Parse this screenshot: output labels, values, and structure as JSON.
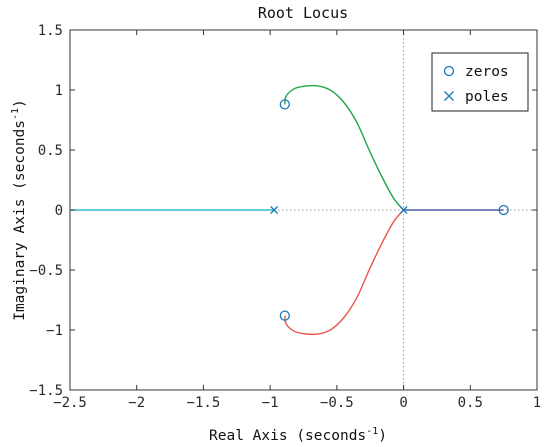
{
  "chart_data": {
    "type": "line",
    "title": "Root Locus",
    "xlabel": {
      "base": "Real Axis (seconds",
      "sup": "-1",
      "close": ")"
    },
    "ylabel": {
      "base": "Imaginary Axis (seconds",
      "sup": "-1",
      "close": ")"
    },
    "xlim": [
      -2.5,
      1
    ],
    "ylim": [
      -1.5,
      1.5
    ],
    "x_ticks": [
      -2.5,
      -2,
      -1.5,
      -1,
      -0.5,
      0,
      0.5,
      1
    ],
    "x_tick_labels": [
      "−2.5",
      "−2",
      "−1.5",
      "−1",
      "−0.5",
      "0",
      "0.5",
      "1"
    ],
    "y_ticks": [
      -1.5,
      -1,
      -0.5,
      0,
      0.5,
      1,
      1.5
    ],
    "y_tick_labels": [
      "−1.5",
      "−1",
      "−0.5",
      "0",
      "0.5",
      "1",
      "1.5"
    ],
    "reference_lines": {
      "x": 0,
      "y": 0,
      "style": "dotted"
    },
    "legend": {
      "position": "top-right",
      "entries": [
        "zeros",
        "poles"
      ]
    },
    "zeros": [
      [
        -0.89,
        0.88
      ],
      [
        -0.89,
        -0.88
      ],
      [
        0.75,
        0
      ]
    ],
    "poles": [
      [
        -0.97,
        0
      ],
      [
        0,
        0
      ]
    ],
    "branches": [
      {
        "color": "#22a64a",
        "points": [
          [
            -0.89,
            0.88
          ],
          [
            -0.88,
            0.95
          ],
          [
            -0.82,
            1.01
          ],
          [
            -0.75,
            1.03
          ],
          [
            -0.65,
            1.035
          ],
          [
            -0.55,
            1.0
          ],
          [
            -0.45,
            0.9
          ],
          [
            -0.35,
            0.73
          ],
          [
            -0.25,
            0.48
          ],
          [
            -0.15,
            0.25
          ],
          [
            -0.07,
            0.09
          ],
          [
            0,
            0
          ]
        ]
      },
      {
        "color": "#e8584a",
        "points": [
          [
            -0.89,
            -0.88
          ],
          [
            -0.88,
            -0.95
          ],
          [
            -0.82,
            -1.01
          ],
          [
            -0.75,
            -1.03
          ],
          [
            -0.65,
            -1.035
          ],
          [
            -0.55,
            -1.0
          ],
          [
            -0.45,
            -0.9
          ],
          [
            -0.35,
            -0.73
          ],
          [
            -0.25,
            -0.48
          ],
          [
            -0.15,
            -0.25
          ],
          [
            -0.07,
            -0.09
          ],
          [
            0,
            0
          ]
        ]
      },
      {
        "color": "#2bbfcf",
        "points": [
          [
            -0.97,
            0
          ],
          [
            -2.5,
            0
          ]
        ]
      },
      {
        "color": "#4d5fa8",
        "points": [
          [
            0,
            0
          ],
          [
            0.75,
            0
          ]
        ]
      }
    ],
    "marker_color": "#1a78b4",
    "grid": false
  }
}
